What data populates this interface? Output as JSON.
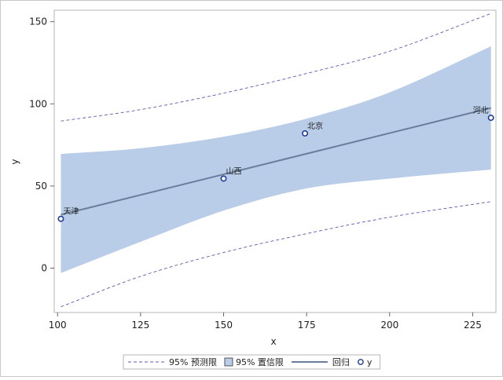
{
  "chart_data": {
    "type": "scatter",
    "xlabel": "x",
    "ylabel": "y",
    "xlim": [
      99,
      232
    ],
    "ylim": [
      -27,
      157
    ],
    "xticks": [
      100,
      125,
      150,
      175,
      200,
      225
    ],
    "yticks": [
      0,
      50,
      100,
      150
    ],
    "grid": false,
    "points": [
      {
        "x": 101,
        "y": 30,
        "label": "天津"
      },
      {
        "x": 150,
        "y": 54.5,
        "label": "山西"
      },
      {
        "x": 174.5,
        "y": 82,
        "label": "北京"
      },
      {
        "x": 230.5,
        "y": 91.5,
        "label": "河北"
      }
    ],
    "regression": {
      "x": [
        101,
        230.5
      ],
      "y": [
        32.5,
        97.5
      ]
    },
    "confidence_band": {
      "x": [
        101,
        125,
        150,
        175,
        200,
        230.5
      ],
      "lower": [
        -3,
        16,
        35,
        48.5,
        54.5,
        60
      ],
      "upper": [
        69.5,
        73,
        80,
        91,
        107,
        135
      ]
    },
    "prediction_band": {
      "x": [
        101,
        125,
        150,
        175,
        200,
        230.5
      ],
      "lower": [
        -23.5,
        -5,
        9.5,
        21,
        31,
        40.5
      ],
      "upper": [
        89.5,
        96.5,
        106.5,
        118.5,
        132,
        155
      ]
    },
    "legend_position": "bottom",
    "legend": [
      {
        "type": "dashed-line",
        "label": "95% 预测限"
      },
      {
        "type": "filled-box",
        "label": "95% 置信限"
      },
      {
        "type": "solid-line",
        "label": "回归"
      },
      {
        "type": "circle-marker",
        "label": "y"
      }
    ],
    "colors": {
      "band": "#b9cde8",
      "regression": "#6a7e9c",
      "prediction": "#5a5ab0",
      "marker": "#1f3d99"
    }
  }
}
